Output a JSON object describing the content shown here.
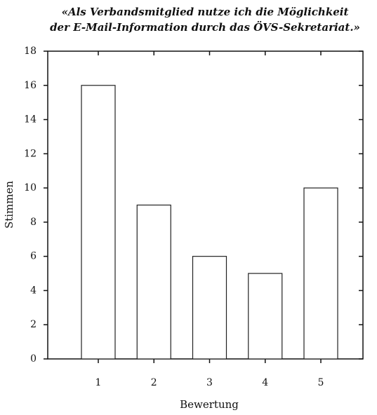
{
  "chart_data": {
    "type": "bar",
    "title": [
      "«Als Verbandsmitglied nutze ich die Möglichkeit",
      "der E-Mail-Information durch das ÖVS-Sekretariat.»"
    ],
    "x_label": "Bewertung",
    "y_label": "Stimmen",
    "categories": [
      "1",
      "2",
      "3",
      "4",
      "5"
    ],
    "values": [
      16,
      9,
      6,
      5,
      10
    ],
    "color": "#ffffff",
    "ylim": [
      0,
      18
    ],
    "yticks": [
      0,
      2,
      4,
      6,
      8,
      10,
      12,
      14,
      16,
      18
    ],
    "grid": false
  }
}
